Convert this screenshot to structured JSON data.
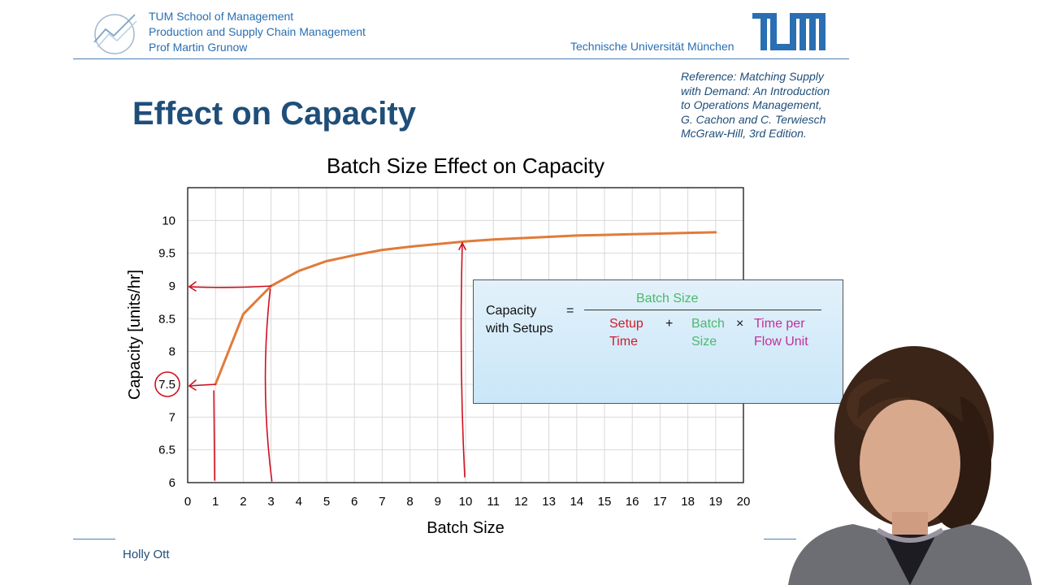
{
  "header": {
    "lines": [
      "TUM School of Management",
      "Production and Supply Chain Management",
      "Prof Martin Grunow"
    ],
    "university": "Technische Universität München",
    "brand_color": "#2a6fb2"
  },
  "slide": {
    "title": "Effect on Capacity",
    "reference": [
      "Reference: Matching Supply",
      "with Demand: An Introduction",
      "to Operations Management,",
      "G. Cachon and C. Terwiesch",
      "McGraw-Hill, 3rd Edition."
    ]
  },
  "chart_data": {
    "type": "line",
    "title": "Batch Size Effect on Capacity",
    "xlabel": "Batch Size",
    "ylabel": "Capacity [units/hr]",
    "xlim": [
      0,
      20
    ],
    "ylim": [
      6,
      10.5
    ],
    "x_ticks": [
      "0",
      "1",
      "2",
      "3",
      "4",
      "5",
      "6",
      "7",
      "8",
      "9",
      "10",
      "11",
      "12",
      "13",
      "14",
      "15",
      "16",
      "17",
      "18",
      "19",
      "20"
    ],
    "y_ticks": [
      "6",
      "6.5",
      "7",
      "7.5",
      "8",
      "8.5",
      "9",
      "9.5",
      "10"
    ],
    "grid": true,
    "series": [
      {
        "color": "#e07b39",
        "x": [
          1,
          2,
          3,
          4,
          5,
          6,
          7,
          8,
          9,
          10,
          11,
          12,
          13,
          14,
          15,
          16,
          17,
          18,
          19
        ],
        "y": [
          7.5,
          8.57,
          9.0,
          9.23,
          9.38,
          9.47,
          9.55,
          9.6,
          9.64,
          9.68,
          9.71,
          9.73,
          9.75,
          9.77,
          9.78,
          9.79,
          9.8,
          9.81,
          9.82
        ]
      }
    ],
    "annotation_color": "#d01020"
  },
  "formula": {
    "lhs": [
      "Capacity",
      "with Setups"
    ],
    "equals": "=",
    "numerator": "Batch Size",
    "setup": [
      "Setup",
      "Time"
    ],
    "plus": "+",
    "batch": [
      "Batch",
      "Size"
    ],
    "times": "×",
    "time_per": [
      "Time per",
      "Flow Unit"
    ],
    "colors": {
      "black": "#111111",
      "green": "#4cb86a",
      "red": "#d11a2a",
      "magenta": "#c0309a"
    }
  },
  "footer": {
    "presenter": "Holly Ott"
  }
}
